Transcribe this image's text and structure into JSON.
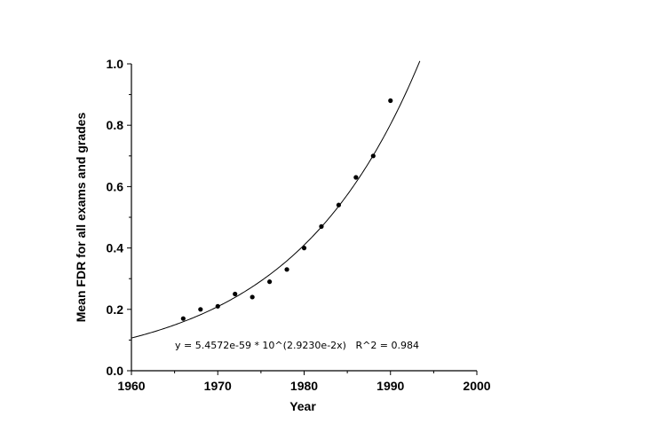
{
  "chart_data": {
    "type": "scatter",
    "xlabel": "Year",
    "ylabel": "Mean FDR for all exams and grades",
    "xlim": [
      1960,
      2000
    ],
    "ylim": [
      0.0,
      1.0
    ],
    "xticks": [
      1960,
      1970,
      1980,
      1990,
      2000
    ],
    "yticks": [
      0.0,
      0.2,
      0.4,
      0.6,
      0.8,
      1.0
    ],
    "xtick_labels": [
      "1960",
      "1970",
      "1980",
      "1990",
      "2000"
    ],
    "ytick_labels": [
      "0.0",
      "0.2",
      "0.4",
      "0.6",
      "0.8",
      "1.0"
    ],
    "grid": false,
    "series": [
      {
        "x": [
          1966,
          1968,
          1970,
          1972,
          1974,
          1976,
          1978,
          1980,
          1982,
          1984,
          1986,
          1988,
          1990
        ],
        "y": [
          0.17,
          0.2,
          0.21,
          0.25,
          0.24,
          0.29,
          0.33,
          0.4,
          0.47,
          0.54,
          0.63,
          0.7,
          0.88
        ]
      }
    ],
    "fit": {
      "type": "exponential",
      "a": 5.4572e-59,
      "b": 0.02923,
      "x_range": [
        1960,
        1993.4
      ]
    },
    "annotation": "y = 5.4572e-59 * 10^(2.9230e-2x)   R^2 = 0.984"
  }
}
